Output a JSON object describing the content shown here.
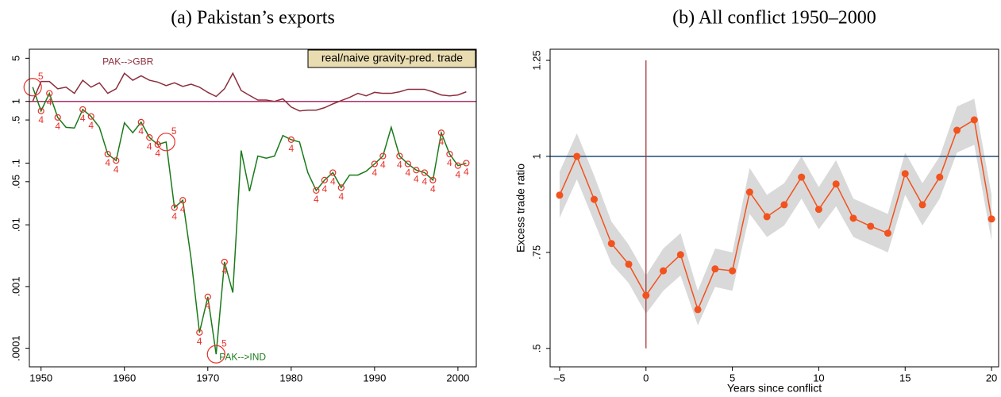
{
  "chart_data": [
    {
      "type": "line",
      "title": "(a) Pakistan’s exports",
      "log_scale": true,
      "annotation": "real/naive gravity-pred. trade",
      "x": [
        1949,
        1950,
        1951,
        1952,
        1953,
        1954,
        1955,
        1956,
        1957,
        1958,
        1959,
        1960,
        1961,
        1962,
        1963,
        1964,
        1965,
        1966,
        1967,
        1968,
        1969,
        1970,
        1971,
        1972,
        1973,
        1974,
        1975,
        1976,
        1977,
        1978,
        1979,
        1980,
        1981,
        1982,
        1983,
        1984,
        1985,
        1986,
        1987,
        1988,
        1989,
        1990,
        1991,
        1992,
        1993,
        1994,
        1995,
        1996,
        1997,
        1998,
        1999,
        2000,
        2001
      ],
      "series": [
        {
          "name": "PAK-->GBR",
          "color": "#8b2e3c",
          "values": [
            1.0,
            2.1,
            2.1,
            1.6,
            1.7,
            1.35,
            2.2,
            1.7,
            2.0,
            1.35,
            1.6,
            2.85,
            2.2,
            2.6,
            2.2,
            2.05,
            1.8,
            2.0,
            1.75,
            1.9,
            1.7,
            1.4,
            1.2,
            1.6,
            2.85,
            1.5,
            1.25,
            1.05,
            1.05,
            1.0,
            1.1,
            0.81,
            0.7,
            0.72,
            0.72,
            0.79,
            0.91,
            1.03,
            1.16,
            1.35,
            1.23,
            1.4,
            1.35,
            1.35,
            1.43,
            1.57,
            1.57,
            1.57,
            1.43,
            1.27,
            1.23,
            1.27,
            1.43
          ]
        },
        {
          "name": "PAK-->IND",
          "color": "#1a7a1a",
          "values": [
            1.7,
            0.7,
            1.35,
            0.55,
            0.38,
            0.37,
            0.74,
            0.57,
            0.38,
            0.14,
            0.11,
            0.45,
            0.31,
            0.46,
            0.26,
            0.2,
            0.22,
            0.019,
            0.025,
            0.0028,
            0.00018,
            0.00068,
            8e-05,
            0.0025,
            0.0008,
            0.16,
            0.035,
            0.13,
            0.12,
            0.13,
            0.28,
            0.24,
            0.22,
            0.07,
            0.036,
            0.053,
            0.07,
            0.04,
            0.064,
            0.064,
            0.074,
            0.097,
            0.13,
            0.38,
            0.13,
            0.097,
            0.077,
            0.07,
            0.053,
            0.31,
            0.14,
            0.091,
            0.1
          ],
          "markers": [
            5,
            4,
            4,
            4,
            null,
            null,
            4,
            4,
            null,
            4,
            4,
            null,
            null,
            4,
            4,
            4,
            5,
            4,
            4,
            null,
            4,
            4,
            5,
            4,
            null,
            null,
            null,
            null,
            null,
            null,
            null,
            4,
            null,
            null,
            4,
            4,
            4,
            4,
            null,
            null,
            null,
            4,
            4,
            null,
            4,
            4,
            4,
            4,
            4,
            4,
            4,
            4,
            4
          ],
          "marker_color": "#e8302a"
        }
      ],
      "hline": 1,
      "hline_color": "#b0306a",
      "xlim": [
        1948.6,
        2002.2
      ],
      "xticks": [
        1950,
        1960,
        1970,
        1980,
        1990,
        2000
      ],
      "ylim": [
        5e-05,
        7
      ],
      "yticks": [
        {
          "value": 0.0001,
          "label": ".0001"
        },
        {
          "value": 0.001,
          "label": ".001"
        },
        {
          "value": 0.01,
          "label": ".01"
        },
        {
          "value": 0.05,
          "label": ".05"
        },
        {
          "value": 0.1,
          "label": ".1"
        },
        {
          "value": 0.5,
          "label": ".5"
        },
        1,
        5
      ]
    },
    {
      "type": "line",
      "title": "(b) All conflict 1950–2000",
      "log_scale": false,
      "x_label": "Years since conflict",
      "y_label": "Excess trade ratio",
      "x": [
        -5,
        -4,
        -3,
        -2,
        -1,
        0,
        1,
        2,
        3,
        4,
        5,
        6,
        7,
        8,
        9,
        10,
        11,
        12,
        13,
        14,
        15,
        16,
        17,
        18,
        19,
        20
      ],
      "series": [
        {
          "color": "#f2521e",
          "values": [
            0.899,
            1.0,
            0.888,
            0.773,
            0.719,
            0.638,
            0.702,
            0.744,
            0.601,
            0.707,
            0.702,
            0.907,
            0.843,
            0.874,
            0.946,
            0.862,
            0.928,
            0.839,
            0.818,
            0.8,
            0.955,
            0.874,
            0.946,
            1.068,
            1.095,
            0.837
          ]
        }
      ],
      "lower": [
        0.84,
        0.94,
        0.83,
        0.72,
        0.67,
        0.59,
        0.65,
        0.69,
        0.56,
        0.66,
        0.65,
        0.85,
        0.79,
        0.82,
        0.89,
        0.81,
        0.87,
        0.79,
        0.77,
        0.75,
        0.9,
        0.82,
        0.89,
        1.01,
        1.03,
        0.78
      ],
      "upper": [
        0.96,
        1.06,
        0.95,
        0.83,
        0.77,
        0.69,
        0.76,
        0.8,
        0.65,
        0.76,
        0.75,
        0.97,
        0.9,
        0.93,
        1.0,
        0.92,
        0.99,
        0.89,
        0.87,
        0.85,
        1.01,
        0.93,
        1.0,
        1.13,
        1.15,
        0.9
      ],
      "band_color": "#d9d9d9",
      "hline": 1,
      "hline_color": "#1f4e79",
      "vline": 0,
      "vline_color": "#9b2a2a",
      "xlim": [
        -5.55,
        20.41
      ],
      "xticks": [
        {
          "value": -5,
          "label": "–5"
        },
        0,
        5,
        10,
        15,
        20
      ],
      "ylim": [
        0.452,
        1.279
      ],
      "yticks": [
        {
          "value": 0.5,
          "label": ".5"
        },
        {
          "value": 0.75,
          "label": ".75"
        },
        1,
        1.25
      ]
    }
  ]
}
